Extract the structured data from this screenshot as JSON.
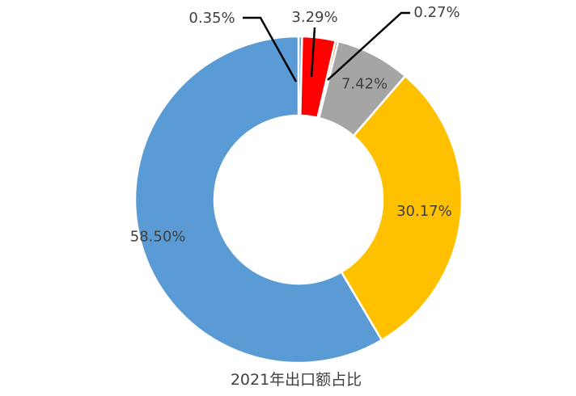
{
  "chart_data": {
    "type": "pie",
    "variant": "donut",
    "title": "2021年出口额占比",
    "start_angle_deg": 0,
    "direction": "clockwise",
    "slices": [
      {
        "label": "0.35%",
        "value": 0.35,
        "color": "#5B9BD5",
        "label_style": "leader"
      },
      {
        "label": "3.29%",
        "value": 3.29,
        "color": "#FF0000",
        "label_style": "leader"
      },
      {
        "label": "0.27%",
        "value": 0.27,
        "color": "#ED7D31",
        "label_style": "leader"
      },
      {
        "label": "7.42%",
        "value": 7.42,
        "color": "#A5A5A5",
        "label_style": "inside"
      },
      {
        "label": "30.17%",
        "value": 30.17,
        "color": "#FFC000",
        "label_style": "inside"
      },
      {
        "label": "58.50%",
        "value": 58.5,
        "color": "#5B9BD5",
        "label_style": "inside"
      }
    ]
  }
}
